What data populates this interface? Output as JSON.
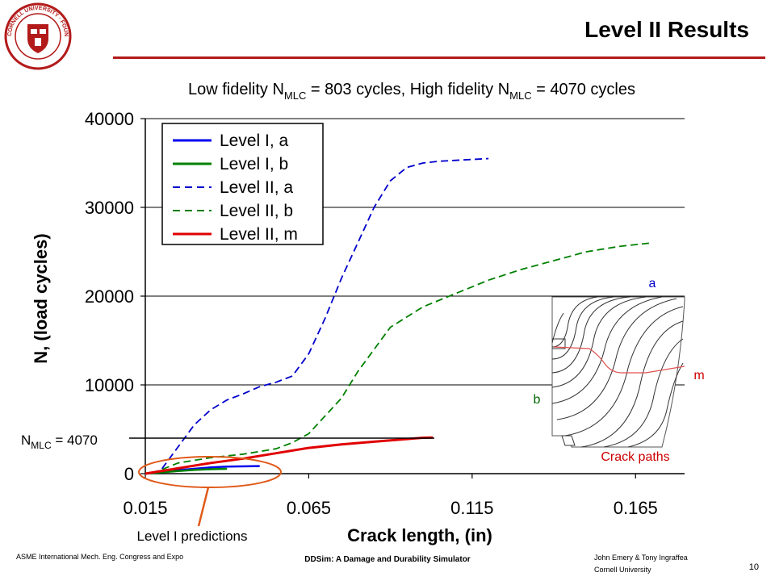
{
  "slide": {
    "title": "Level II Results",
    "subtitle_parts": {
      "a": "Low fidelity N",
      "sub1": "MLC",
      "b": " = 803 cycles, High fidelity N",
      "sub2": "MLC",
      "c": " = 4070 cycles"
    },
    "footer_left": "ASME International Mech. Eng. Congress and Expo",
    "footer_center": "DDSim: A Damage and Durability Simulator",
    "footer_right_1": "John Emery & Tony Ingraffea",
    "footer_right_2": "Cornell University",
    "page_number": "10",
    "logo_text": "CORNELL UNIVERSITY · FOUNDED A.D. 1865",
    "colors": {
      "accent_red": "#b31b1b",
      "logo_red": "#b31b1b"
    }
  },
  "annotations": {
    "nmlc_main": "N",
    "nmlc_sub": "MLC",
    "nmlc_rest": " = 4070",
    "level1_predictions": "Level I predictions",
    "crack_paths": "Crack paths",
    "label_a": "a",
    "label_b": "b",
    "label_m": "m"
  },
  "chart_data": {
    "type": "line",
    "xlabel": "Crack length, (in)",
    "ylabel": "N, (load cycles)",
    "xlim": [
      0.015,
      0.18
    ],
    "ylim": [
      0,
      40000
    ],
    "xticks": [
      0.015,
      0.065,
      0.115,
      0.165
    ],
    "xtick_labels": [
      "0.015",
      "0.065",
      "0.115",
      "0.165"
    ],
    "yticks": [
      0,
      10000,
      20000,
      30000,
      40000
    ],
    "ytick_labels": [
      "0",
      "10000",
      "20000",
      "30000",
      "40000"
    ],
    "grid": "horizontal",
    "legend_position": "top-left",
    "series": [
      {
        "name": "Level I, a",
        "color": "#0000ee",
        "dash": "solid",
        "width": 2.5,
        "x": [
          0.015,
          0.02,
          0.025,
          0.03,
          0.035,
          0.04,
          0.05
        ],
        "y": [
          0,
          200,
          400,
          550,
          700,
          800,
          850
        ]
      },
      {
        "name": "Level I, b",
        "color": "#008000",
        "dash": "solid",
        "width": 2.5,
        "x": [
          0.015,
          0.02,
          0.025,
          0.03,
          0.035,
          0.04
        ],
        "y": [
          0,
          150,
          300,
          420,
          500,
          550
        ]
      },
      {
        "name": "Level II, a",
        "color": "#0000cc",
        "dash": "dashed",
        "width": 1.8,
        "x": [
          0.017,
          0.02,
          0.024,
          0.03,
          0.035,
          0.04,
          0.045,
          0.05,
          0.055,
          0.06,
          0.065,
          0.07,
          0.075,
          0.08,
          0.085,
          0.09,
          0.095,
          0.1,
          0.105,
          0.11,
          0.115,
          0.12
        ],
        "y": [
          0,
          500,
          2500,
          5500,
          7200,
          8300,
          9000,
          9800,
          10300,
          11000,
          13500,
          17500,
          22000,
          26000,
          30000,
          33000,
          34500,
          35000,
          35200,
          35300,
          35400,
          35500
        ]
      },
      {
        "name": "Level II, b",
        "color": "#008000",
        "dash": "dashed",
        "width": 1.8,
        "x": [
          0.017,
          0.025,
          0.035,
          0.045,
          0.055,
          0.06,
          0.065,
          0.07,
          0.075,
          0.08,
          0.085,
          0.09,
          0.1,
          0.11,
          0.12,
          0.13,
          0.14,
          0.15,
          0.16,
          0.17
        ],
        "y": [
          0,
          1200,
          1800,
          2200,
          2800,
          3500,
          4500,
          6500,
          8500,
          11500,
          14000,
          16500,
          18800,
          20300,
          21800,
          23000,
          24000,
          25000,
          25600,
          26000
        ]
      },
      {
        "name": "Level II, m",
        "color": "#e00000",
        "dash": "solid",
        "width": 3,
        "x": [
          0.015,
          0.025,
          0.035,
          0.045,
          0.055,
          0.065,
          0.075,
          0.085,
          0.095,
          0.1,
          0.103
        ],
        "y": [
          0,
          600,
          1200,
          1700,
          2300,
          2900,
          3300,
          3600,
          3900,
          4050,
          4070
        ]
      }
    ]
  }
}
